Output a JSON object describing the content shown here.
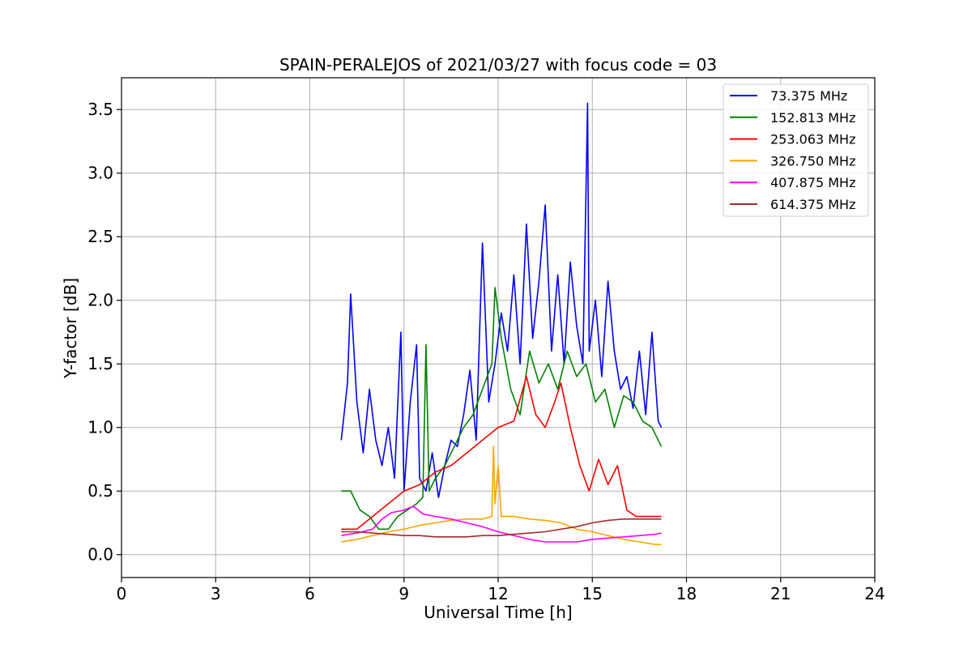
{
  "chart_data": {
    "type": "line",
    "title": "SPAIN-PERALEJOS of 2021/03/27 with focus code = 03",
    "xlabel": "Universal Time [h]",
    "ylabel": "Y-factor [dB]",
    "xlim": [
      0,
      24
    ],
    "ylim": [
      -0.18,
      3.75
    ],
    "xticks": [
      0,
      3,
      6,
      9,
      12,
      15,
      18,
      21,
      24
    ],
    "yticks": [
      0.0,
      0.5,
      1.0,
      1.5,
      2.0,
      2.5,
      3.0,
      3.5
    ],
    "xtick_labels": [
      "0",
      "3",
      "6",
      "9",
      "12",
      "15",
      "18",
      "21",
      "24"
    ],
    "ytick_labels": [
      "0.0",
      "0.5",
      "1.0",
      "1.5",
      "2.0",
      "2.5",
      "3.0",
      "3.5"
    ],
    "grid": true,
    "legend_position": "top-right",
    "series": [
      {
        "name": " 73.375 MHz",
        "color": "#0000ff",
        "x": [
          7.0,
          7.2,
          7.3,
          7.5,
          7.7,
          7.9,
          8.1,
          8.3,
          8.5,
          8.7,
          8.9,
          9.0,
          9.2,
          9.4,
          9.5,
          9.7,
          9.9,
          10.1,
          10.3,
          10.5,
          10.7,
          10.9,
          11.1,
          11.3,
          11.5,
          11.7,
          11.9,
          12.1,
          12.3,
          12.5,
          12.7,
          12.9,
          13.1,
          13.3,
          13.5,
          13.7,
          13.9,
          14.1,
          14.3,
          14.5,
          14.7,
          14.85,
          14.9,
          15.1,
          15.3,
          15.5,
          15.7,
          15.9,
          16.1,
          16.3,
          16.5,
          16.7,
          16.9,
          17.1,
          17.2
        ],
        "y": [
          0.9,
          1.35,
          2.05,
          1.2,
          0.8,
          1.3,
          0.9,
          0.7,
          1.0,
          0.6,
          1.75,
          0.5,
          1.2,
          1.65,
          0.6,
          0.5,
          0.8,
          0.45,
          0.7,
          0.9,
          0.85,
          1.1,
          1.45,
          0.9,
          2.45,
          1.2,
          1.5,
          1.9,
          1.6,
          2.2,
          1.5,
          2.6,
          1.7,
          2.15,
          2.75,
          1.6,
          2.2,
          1.5,
          2.3,
          1.8,
          1.5,
          3.55,
          1.6,
          2.0,
          1.4,
          2.15,
          1.6,
          1.3,
          1.4,
          1.15,
          1.6,
          1.1,
          1.75,
          1.05,
          1.0
        ]
      },
      {
        "name": "152.813 MHz",
        "color": "#008000",
        "x": [
          7.0,
          7.3,
          7.6,
          7.9,
          8.2,
          8.5,
          8.8,
          9.1,
          9.4,
          9.6,
          9.7,
          9.8,
          10.0,
          10.3,
          10.6,
          10.9,
          11.2,
          11.5,
          11.8,
          11.9,
          12.1,
          12.4,
          12.7,
          13.0,
          13.3,
          13.6,
          13.9,
          14.2,
          14.5,
          14.8,
          15.1,
          15.4,
          15.7,
          16.0,
          16.3,
          16.6,
          16.9,
          17.2
        ],
        "y": [
          0.5,
          0.5,
          0.35,
          0.3,
          0.2,
          0.2,
          0.3,
          0.35,
          0.4,
          0.45,
          1.65,
          0.5,
          0.6,
          0.7,
          0.85,
          1.0,
          1.1,
          1.3,
          1.5,
          2.1,
          1.7,
          1.3,
          1.1,
          1.6,
          1.35,
          1.5,
          1.3,
          1.6,
          1.4,
          1.5,
          1.2,
          1.3,
          1.0,
          1.25,
          1.2,
          1.05,
          1.0,
          0.85
        ]
      },
      {
        "name": "253.063 MHz",
        "color": "#ff0000",
        "x": [
          7.0,
          7.5,
          8.0,
          8.5,
          9.0,
          9.5,
          10.0,
          10.5,
          11.0,
          11.5,
          12.0,
          12.5,
          12.9,
          13.2,
          13.5,
          13.8,
          14.0,
          14.3,
          14.6,
          14.9,
          15.2,
          15.5,
          15.8,
          16.1,
          16.4,
          16.7,
          17.0,
          17.2
        ],
        "y": [
          0.2,
          0.2,
          0.3,
          0.4,
          0.5,
          0.55,
          0.65,
          0.7,
          0.8,
          0.9,
          1.0,
          1.05,
          1.4,
          1.1,
          1.0,
          1.2,
          1.35,
          1.0,
          0.7,
          0.5,
          0.75,
          0.55,
          0.7,
          0.35,
          0.3,
          0.3,
          0.3,
          0.3
        ]
      },
      {
        "name": "326.750 MHz",
        "color": "#ffa500",
        "x": [
          7.0,
          7.5,
          8.0,
          8.5,
          9.0,
          9.5,
          10.0,
          10.5,
          11.0,
          11.5,
          11.8,
          11.85,
          11.9,
          12.0,
          12.1,
          12.2,
          12.5,
          13.0,
          13.5,
          14.0,
          14.5,
          15.0,
          15.5,
          16.0,
          16.5,
          17.0,
          17.2
        ],
        "y": [
          0.1,
          0.12,
          0.15,
          0.18,
          0.2,
          0.23,
          0.25,
          0.27,
          0.28,
          0.28,
          0.3,
          0.85,
          0.4,
          0.7,
          0.3,
          0.3,
          0.3,
          0.28,
          0.27,
          0.25,
          0.2,
          0.18,
          0.15,
          0.12,
          0.1,
          0.08,
          0.08
        ]
      },
      {
        "name": "407.875 MHz",
        "color": "#ff00ff",
        "x": [
          7.0,
          7.5,
          8.0,
          8.3,
          8.6,
          9.0,
          9.3,
          9.6,
          10.0,
          10.5,
          11.0,
          11.5,
          12.0,
          12.5,
          13.0,
          13.5,
          14.0,
          14.5,
          15.0,
          15.5,
          16.0,
          16.5,
          17.0,
          17.2
        ],
        "y": [
          0.15,
          0.17,
          0.2,
          0.28,
          0.33,
          0.35,
          0.38,
          0.32,
          0.3,
          0.28,
          0.25,
          0.22,
          0.18,
          0.15,
          0.12,
          0.1,
          0.1,
          0.1,
          0.12,
          0.13,
          0.14,
          0.15,
          0.16,
          0.17
        ]
      },
      {
        "name": "614.375 MHz",
        "color": "#a52a2a",
        "x": [
          7.0,
          7.5,
          8.0,
          8.5,
          9.0,
          9.5,
          10.0,
          10.5,
          11.0,
          11.5,
          12.0,
          12.5,
          13.0,
          13.5,
          14.0,
          14.5,
          15.0,
          15.5,
          16.0,
          16.5,
          17.0,
          17.2
        ],
        "y": [
          0.18,
          0.18,
          0.17,
          0.16,
          0.15,
          0.15,
          0.14,
          0.14,
          0.14,
          0.15,
          0.15,
          0.16,
          0.17,
          0.18,
          0.2,
          0.22,
          0.25,
          0.27,
          0.28,
          0.28,
          0.28,
          0.28
        ]
      }
    ]
  }
}
